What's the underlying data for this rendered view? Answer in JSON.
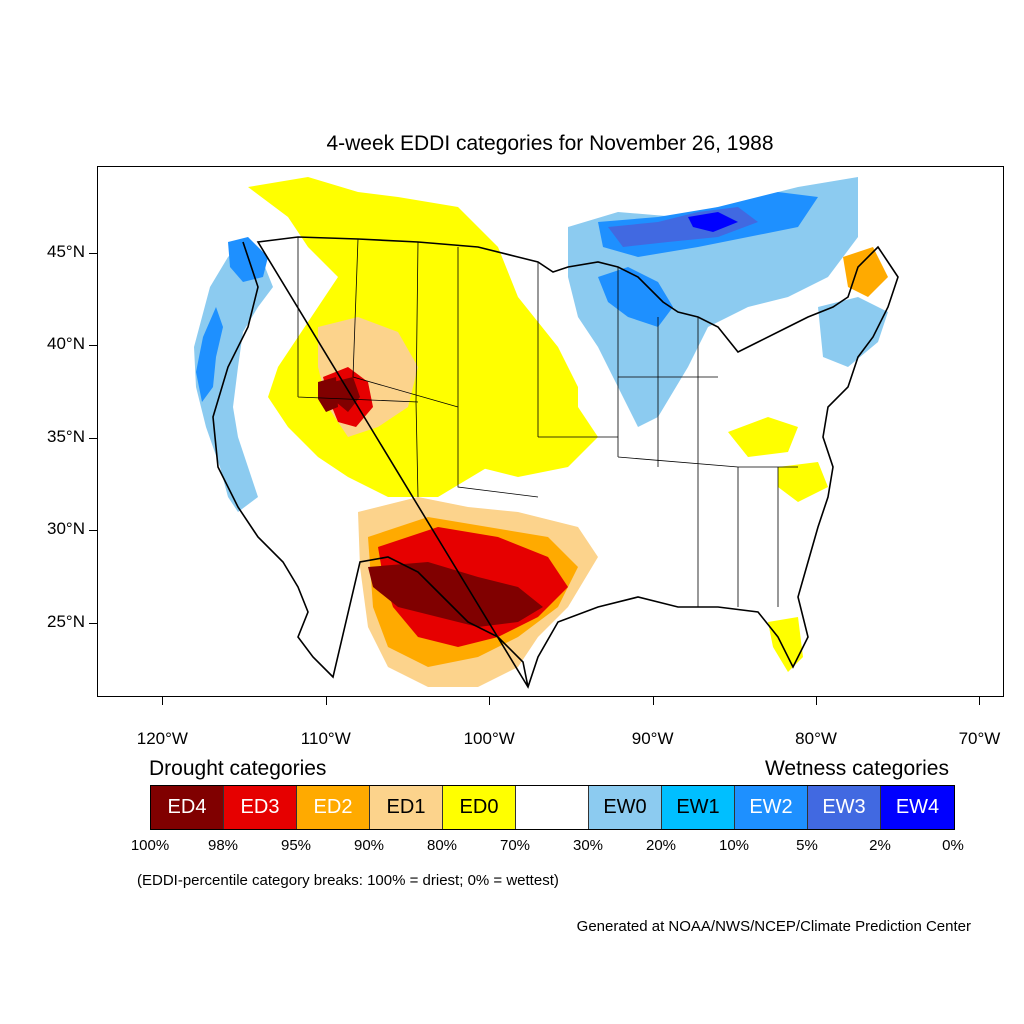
{
  "title": "4-week EDDI categories for November 26, 1988",
  "map": {
    "lon_range": [
      -124,
      -68.5
    ],
    "lat_range": [
      21,
      49.7
    ],
    "lat_labels": [
      "45°N",
      "40°N",
      "35°N",
      "30°N",
      "25°N"
    ],
    "lat_values": [
      45,
      40,
      35,
      30,
      25
    ],
    "lon_labels": [
      "120°W",
      "110°W",
      "100°W",
      "90°W",
      "80°W",
      "70°W"
    ],
    "lon_values": [
      -120,
      -110,
      -100,
      -90,
      -80,
      -70
    ]
  },
  "legend": {
    "drought_heading": "Drought categories",
    "wetness_heading": "Wetness categories",
    "categories": [
      {
        "label": "ED4",
        "color": "#800000",
        "text_color": "#ffffff"
      },
      {
        "label": "ED3",
        "color": "#e60000",
        "text_color": "#ffffff"
      },
      {
        "label": "ED2",
        "color": "#ffaa00",
        "text_color": "#ffffff"
      },
      {
        "label": "ED1",
        "color": "#fcd38c",
        "text_color": "#000000"
      },
      {
        "label": "ED0",
        "color": "#ffff00",
        "text_color": "#000000"
      },
      {
        "label": "",
        "color": "#ffffff",
        "text_color": "#000000"
      },
      {
        "label": "EW0",
        "color": "#8ccbf0",
        "text_color": "#000000"
      },
      {
        "label": "EW1",
        "color": "#00bfff",
        "text_color": "#000000"
      },
      {
        "label": "EW2",
        "color": "#1e90ff",
        "text_color": "#ffffff"
      },
      {
        "label": "EW3",
        "color": "#4169e1",
        "text_color": "#ffffff"
      },
      {
        "label": "EW4",
        "color": "#0000ff",
        "text_color": "#ffffff"
      }
    ],
    "percent_breaks": [
      "100%",
      "98%",
      "95%",
      "90%",
      "80%",
      "70%",
      "30%",
      "20%",
      "10%",
      "5%",
      "2%",
      "0%"
    ]
  },
  "note": "(EDDI-percentile category breaks: 100% = driest; 0% = wettest)",
  "credit": "Generated at NOAA/NWS/NCEP/Climate Prediction Center"
}
